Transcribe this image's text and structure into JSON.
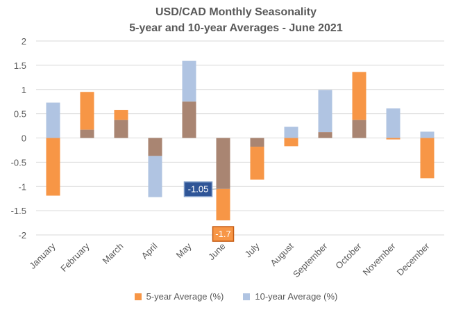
{
  "colors": {
    "series_5yr": "#F79646",
    "series_10yr": "#B0C4E2",
    "overlap": "#A98572",
    "callout_blue_fill": "#2F5597",
    "callout_orange_fill": "#F79646",
    "text": "#595959"
  },
  "chart_data": {
    "type": "bar",
    "title": "USD/CAD Monthly Seasonality",
    "subtitle": "5-year and 10-year Averages - June 2021",
    "categories": [
      "January",
      "February",
      "March",
      "April",
      "May",
      "June",
      "July",
      "August",
      "September",
      "October",
      "November",
      "December"
    ],
    "series": [
      {
        "name": "5-year Average (%)",
        "values": [
          -1.19,
          0.95,
          0.58,
          -0.37,
          0.75,
          -1.7,
          -0.86,
          -0.17,
          0.12,
          1.36,
          -0.03,
          -0.83
        ]
      },
      {
        "name": "10-year Average (%)",
        "values": [
          0.73,
          0.17,
          0.37,
          -1.22,
          1.59,
          -1.05,
          -0.18,
          0.23,
          0.99,
          0.37,
          0.61,
          0.13
        ]
      }
    ],
    "ylim": [
      -2,
      2
    ],
    "yticks": [
      "2",
      "1.5",
      "1",
      "0.5",
      "0",
      "-0.5",
      "-1",
      "-1.5",
      "-2"
    ],
    "grid": true,
    "legend_position": "bottom",
    "annotations": [
      {
        "label": "-1.05",
        "category": "June",
        "series": "10-year Average (%)",
        "value": -1.05
      },
      {
        "label": "-1.7",
        "category": "June",
        "series": "5-year Average (%)",
        "value": -1.7
      }
    ]
  }
}
